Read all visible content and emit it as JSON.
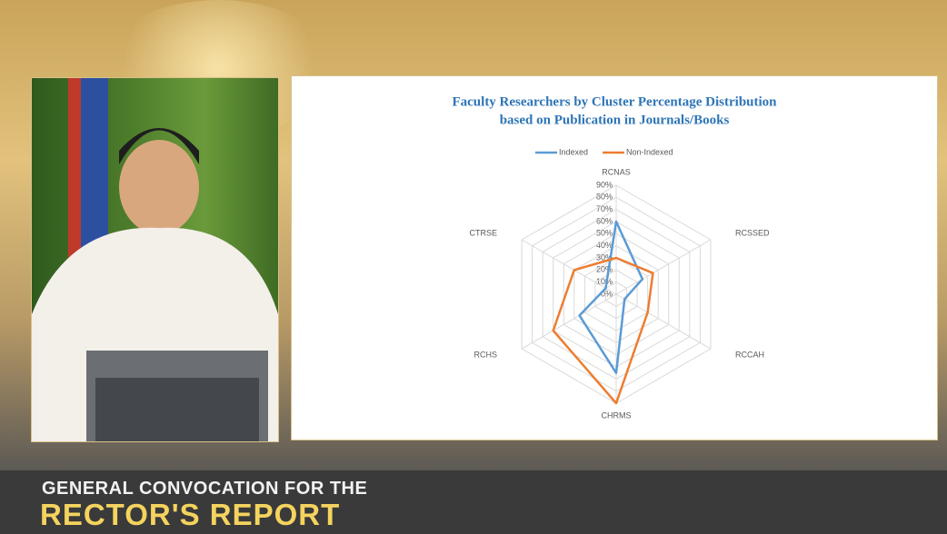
{
  "chart_data": {
    "type": "radar",
    "title": "Faculty Researchers by Cluster Percentage Distribution",
    "subtitle": "based on Publication in Journals/Books",
    "categories": [
      "RCNAS",
      "RCSSED",
      "RCCAH",
      "CHRMS",
      "RCHS",
      "CTRSE"
    ],
    "series": [
      {
        "name": "Indexed",
        "color": "#5b9bd5",
        "values": [
          60,
          25,
          8,
          65,
          35,
          10
        ]
      },
      {
        "name": "Non-Indexed",
        "color": "#ed7d31",
        "values": [
          30,
          35,
          30,
          90,
          60,
          40
        ]
      }
    ],
    "ylim": [
      0,
      90
    ],
    "yticks": [
      {
        "value": 0,
        "label": "0%"
      },
      {
        "value": 10,
        "label": "10%"
      },
      {
        "value": 20,
        "label": "20%"
      },
      {
        "value": 30,
        "label": "30%"
      },
      {
        "value": 40,
        "label": "40%"
      },
      {
        "value": 50,
        "label": "50%"
      },
      {
        "value": 60,
        "label": "60%"
      },
      {
        "value": 70,
        "label": "70%"
      },
      {
        "value": 80,
        "label": "80%"
      },
      {
        "value": 90,
        "label": "90%"
      }
    ],
    "grid": true,
    "legend": "top"
  },
  "banner": {
    "line1": "GENERAL CONVOCATION FOR THE",
    "line2": "RECTOR'S REPORT"
  }
}
